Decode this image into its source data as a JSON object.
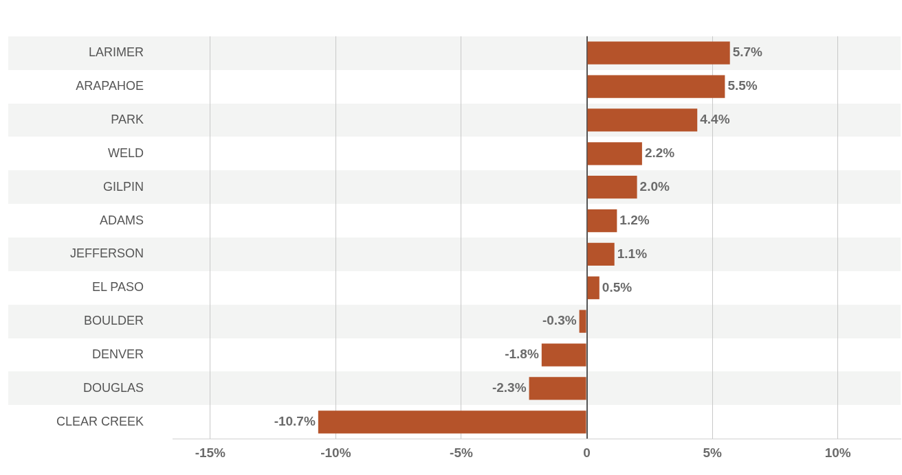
{
  "chart_data": {
    "type": "bar",
    "orientation": "horizontal",
    "categories": [
      "LARIMER",
      "ARAPAHOE",
      "PARK",
      "WELD",
      "GILPIN",
      "ADAMS",
      "JEFFERSON",
      "EL PASO",
      "BOULDER",
      "DENVER",
      "DOUGLAS",
      "CLEAR CREEK"
    ],
    "values": [
      5.7,
      5.5,
      4.4,
      2.2,
      2.0,
      1.2,
      1.1,
      0.5,
      -0.3,
      -1.8,
      -2.3,
      -10.7
    ],
    "value_labels": [
      "5.7%",
      "5.5%",
      "4.4%",
      "2.2%",
      "2.0%",
      "1.2%",
      "1.1%",
      "0.5%",
      "-0.3%",
      "-1.8%",
      "-2.3%",
      "-10.7%"
    ],
    "color": "#b5532a",
    "xlim": [
      -16.5,
      12.5
    ],
    "xticks": [
      {
        "value": -15,
        "label": "-15%"
      },
      {
        "value": -10,
        "label": "-10%"
      },
      {
        "value": -5,
        "label": "-5%"
      },
      {
        "value": 0,
        "label": "0"
      },
      {
        "value": 5,
        "label": "5%"
      },
      {
        "value": 10,
        "label": "10%"
      }
    ],
    "grid": "x",
    "legend": false
  }
}
